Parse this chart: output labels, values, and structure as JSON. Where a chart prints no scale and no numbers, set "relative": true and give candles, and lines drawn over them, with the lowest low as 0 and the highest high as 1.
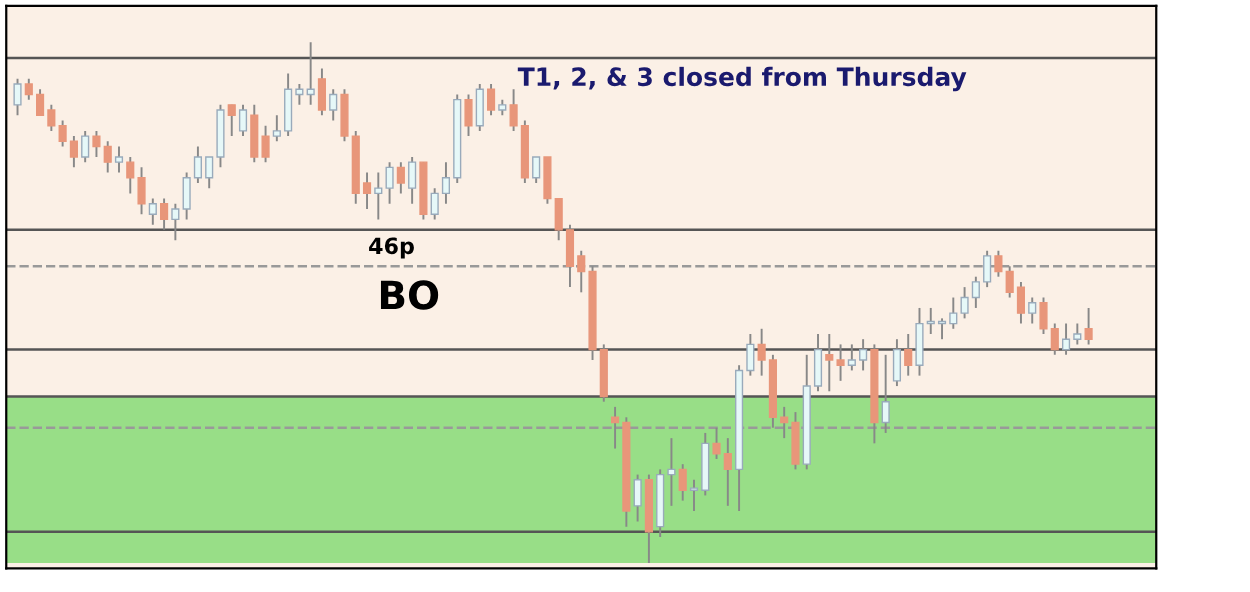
{
  "chart_data": {
    "type": "candlestick",
    "relative": true,
    "categories": [
      null,
      null,
      null,
      null,
      null,
      null,
      null,
      null,
      null,
      null,
      null,
      null,
      null,
      null,
      null,
      null,
      null,
      null,
      null,
      null,
      null,
      null,
      null,
      null,
      null,
      null,
      null,
      null,
      null,
      null,
      null,
      null,
      null,
      null,
      null,
      null,
      null,
      null,
      null,
      null,
      null,
      null,
      null,
      null,
      null,
      null,
      null,
      null,
      null,
      null,
      null,
      null,
      null,
      null,
      null,
      null,
      null,
      null,
      null,
      null,
      null,
      null,
      null,
      null,
      null,
      null,
      null,
      null,
      null,
      null,
      null,
      null,
      null,
      null,
      null,
      null,
      null,
      null,
      null,
      null,
      null,
      null,
      null,
      null,
      null,
      null,
      null,
      null,
      null,
      null,
      null,
      null,
      null,
      null,
      null,
      null
    ],
    "ohlc": [
      [
        0.88,
        0.93,
        0.86,
        0.92
      ],
      [
        0.92,
        0.93,
        0.89,
        0.9
      ],
      [
        0.9,
        0.91,
        0.86,
        0.86
      ],
      [
        0.87,
        0.88,
        0.83,
        0.84
      ],
      [
        0.84,
        0.85,
        0.8,
        0.81
      ],
      [
        0.81,
        0.82,
        0.76,
        0.78
      ],
      [
        0.78,
        0.83,
        0.77,
        0.82
      ],
      [
        0.82,
        0.83,
        0.78,
        0.8
      ],
      [
        0.8,
        0.81,
        0.75,
        0.77
      ],
      [
        0.77,
        0.8,
        0.75,
        0.78
      ],
      [
        0.77,
        0.78,
        0.71,
        0.74
      ],
      [
        0.74,
        0.76,
        0.67,
        0.69
      ],
      [
        0.67,
        0.7,
        0.65,
        0.69
      ],
      [
        0.69,
        0.7,
        0.64,
        0.66
      ],
      [
        0.66,
        0.69,
        0.62,
        0.68
      ],
      [
        0.68,
        0.75,
        0.66,
        0.74
      ],
      [
        0.74,
        0.8,
        0.73,
        0.78
      ],
      [
        0.74,
        0.78,
        0.72,
        0.78
      ],
      [
        0.78,
        0.88,
        0.76,
        0.87
      ],
      [
        0.88,
        0.88,
        0.82,
        0.86
      ],
      [
        0.83,
        0.88,
        0.82,
        0.87
      ],
      [
        0.86,
        0.88,
        0.77,
        0.78
      ],
      [
        0.82,
        0.84,
        0.77,
        0.78
      ],
      [
        0.82,
        0.86,
        0.81,
        0.83
      ],
      [
        0.83,
        0.94,
        0.82,
        0.91
      ],
      [
        0.9,
        0.92,
        0.88,
        0.91
      ],
      [
        0.9,
        1,
        0.88,
        0.91
      ],
      [
        0.93,
        0.95,
        0.86,
        0.87
      ],
      [
        0.87,
        0.91,
        0.85,
        0.9
      ],
      [
        0.9,
        0.91,
        0.81,
        0.82
      ],
      [
        0.82,
        0.83,
        0.69,
        0.71
      ],
      [
        0.73,
        0.75,
        0.68,
        0.71
      ],
      [
        0.71,
        0.75,
        0.66,
        0.72
      ],
      [
        0.72,
        0.77,
        0.69,
        0.76
      ],
      [
        0.76,
        0.77,
        0.71,
        0.73
      ],
      [
        0.72,
        0.78,
        0.69,
        0.77
      ],
      [
        0.77,
        0.77,
        0.66,
        0.67
      ],
      [
        0.67,
        0.72,
        0.66,
        0.71
      ],
      [
        0.71,
        0.77,
        0.69,
        0.74
      ],
      [
        0.74,
        0.9,
        0.73,
        0.89
      ],
      [
        0.89,
        0.9,
        0.82,
        0.84
      ],
      [
        0.84,
        0.92,
        0.83,
        0.91
      ],
      [
        0.91,
        0.92,
        0.86,
        0.87
      ],
      [
        0.87,
        0.89,
        0.86,
        0.88
      ],
      [
        0.88,
        0.91,
        0.83,
        0.84
      ],
      [
        0.84,
        0.85,
        0.73,
        0.74
      ],
      [
        0.74,
        0.78,
        0.73,
        0.78
      ],
      [
        0.78,
        0.78,
        0.69,
        0.7
      ],
      [
        0.7,
        0.7,
        0.62,
        0.64
      ],
      [
        0.64,
        0.65,
        0.53,
        0.57
      ],
      [
        0.59,
        0.6,
        0.52,
        0.56
      ],
      [
        0.56,
        0.57,
        0.39,
        0.41
      ],
      [
        0.41,
        0.42,
        0.31,
        0.32
      ],
      [
        0.28,
        0.3,
        0.22,
        0.27
      ],
      [
        0.27,
        0.28,
        0.07,
        0.1
      ],
      [
        0.11,
        0.17,
        0.08,
        0.16
      ],
      [
        0.16,
        0.17,
        0,
        0.06
      ],
      [
        0.07,
        0.18,
        0.05,
        0.17
      ],
      [
        0.17,
        0.24,
        0.11,
        0.18
      ],
      [
        0.18,
        0.19,
        0.12,
        0.14
      ],
      [
        0.14,
        0.16,
        0.1,
        0.14
      ],
      [
        0.14,
        0.25,
        0.13,
        0.23
      ],
      [
        0.23,
        0.26,
        0.2,
        0.21
      ],
      [
        0.21,
        0.24,
        0.11,
        0.18
      ],
      [
        0.18,
        0.38,
        0.1,
        0.37
      ],
      [
        0.37,
        0.44,
        0.36,
        0.42
      ],
      [
        0.42,
        0.45,
        0.36,
        0.39
      ],
      [
        0.39,
        0.4,
        0.26,
        0.28
      ],
      [
        0.28,
        0.3,
        0.24,
        0.27
      ],
      [
        0.27,
        0.29,
        0.18,
        0.19
      ],
      [
        0.19,
        0.4,
        0.18,
        0.34
      ],
      [
        0.34,
        0.44,
        0.33,
        0.41
      ],
      [
        0.4,
        0.44,
        0.33,
        0.39
      ],
      [
        0.39,
        0.42,
        0.35,
        0.38
      ],
      [
        0.38,
        0.42,
        0.37,
        0.39
      ],
      [
        0.39,
        0.43,
        0.37,
        0.41
      ],
      [
        0.41,
        0.42,
        0.23,
        0.27
      ],
      [
        0.27,
        0.4,
        0.25,
        0.31
      ],
      [
        0.35,
        0.43,
        0.34,
        0.41
      ],
      [
        0.41,
        0.44,
        0.36,
        0.38
      ],
      [
        0.38,
        0.49,
        0.36,
        0.46
      ],
      [
        0.46,
        0.49,
        0.44,
        0.46
      ],
      [
        0.46,
        0.47,
        0.43,
        0.46
      ],
      [
        0.46,
        0.51,
        0.45,
        0.48
      ],
      [
        0.48,
        0.53,
        0.47,
        0.51
      ],
      [
        0.51,
        0.55,
        0.49,
        0.54
      ],
      [
        0.54,
        0.6,
        0.53,
        0.59
      ],
      [
        0.59,
        0.6,
        0.55,
        0.56
      ],
      [
        0.56,
        0.57,
        0.51,
        0.52
      ],
      [
        0.53,
        0.54,
        0.46,
        0.48
      ],
      [
        0.48,
        0.51,
        0.46,
        0.5
      ],
      [
        0.5,
        0.51,
        0.44,
        0.45
      ],
      [
        0.45,
        0.46,
        0.4,
        0.41
      ],
      [
        0.41,
        0.46,
        0.4,
        0.43
      ],
      [
        0.43,
        0.46,
        0.42,
        0.44
      ],
      [
        0.45,
        0.49,
        0.42,
        0.43
      ]
    ],
    "bands": [
      {
        "axis": "y",
        "from": 0,
        "to": 0.32,
        "color": "#98de87"
      }
    ],
    "ref_lines": [
      {
        "axis": "y",
        "value": 0.97,
        "color": "#555555",
        "line_style": "solid"
      },
      {
        "axis": "y",
        "value": 0.64,
        "color": "#555555",
        "line_style": "solid"
      },
      {
        "axis": "y",
        "value": 0.57,
        "color": "#999999",
        "line_style": "dashed"
      },
      {
        "axis": "y",
        "value": 0.41,
        "color": "#555555",
        "line_style": "solid"
      },
      {
        "axis": "y",
        "value": 0.32,
        "color": "#555555",
        "line_style": "solid"
      },
      {
        "axis": "y",
        "value": 0.26,
        "color": "#999999",
        "line_style": "dashed"
      },
      {
        "axis": "y",
        "value": 0.06,
        "color": "#555555",
        "line_style": "solid"
      }
    ],
    "annotations": [
      "T1, 2, & 3 closed from Thursday",
      "46p",
      "BO"
    ]
  }
}
